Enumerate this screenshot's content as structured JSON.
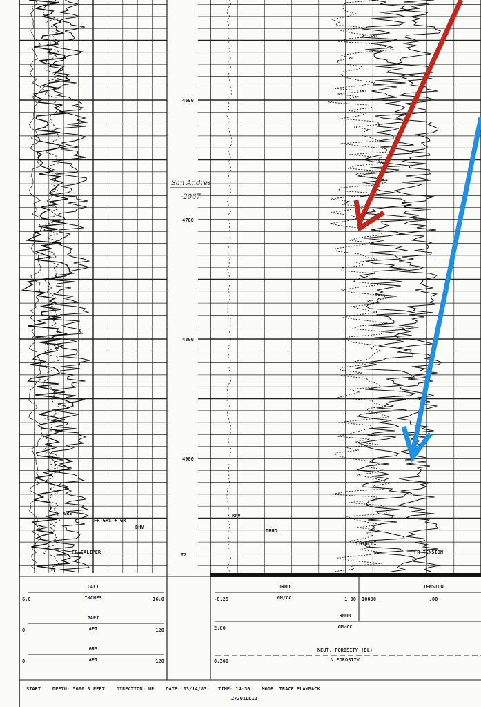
{
  "depth_track": {
    "labels": [
      "4600",
      "4700",
      "4800",
      "4900"
    ],
    "marker": "T2",
    "annotation": [
      "San Andres",
      "-2067"
    ]
  },
  "curve_labels": {
    "track1": [
      "GRS",
      "FR GRS + GR",
      "BHV",
      "FR CALIPER"
    ],
    "track3": [
      "RHV",
      "DRHO",
      "FR NPHI",
      "FR TENSION"
    ]
  },
  "header": {
    "track1": [
      {
        "name": "CALI",
        "unit": "INCHES",
        "left": "6.0",
        "right": "16.0"
      },
      {
        "name": "GAPI",
        "unit": "API",
        "left": "0",
        "right": "120"
      },
      {
        "name": "GRS",
        "unit": "API",
        "left": "0",
        "right": "120"
      }
    ],
    "track3": [
      {
        "name": "DRHO",
        "unit": "GM/CC",
        "left": "-0.25",
        "right": "1.00"
      },
      {
        "name": "RHOB",
        "unit": "GM/CC",
        "left": "2.00"
      },
      {
        "name": "NEUT. POROSITY (DL)",
        "unit": "% POROSITY",
        "left": "0.300"
      }
    ],
    "track4": {
      "name": "TENSION",
      "unit": ".00",
      "left": "10000"
    }
  },
  "footer": {
    "line": "START    DEPTH: 5000.0 FEET    DIRECTION: UP    DATE: 03/14/83    TIME: 14:30    MODE  TRACE PLAYBACK",
    "id": "27201LD12"
  }
}
